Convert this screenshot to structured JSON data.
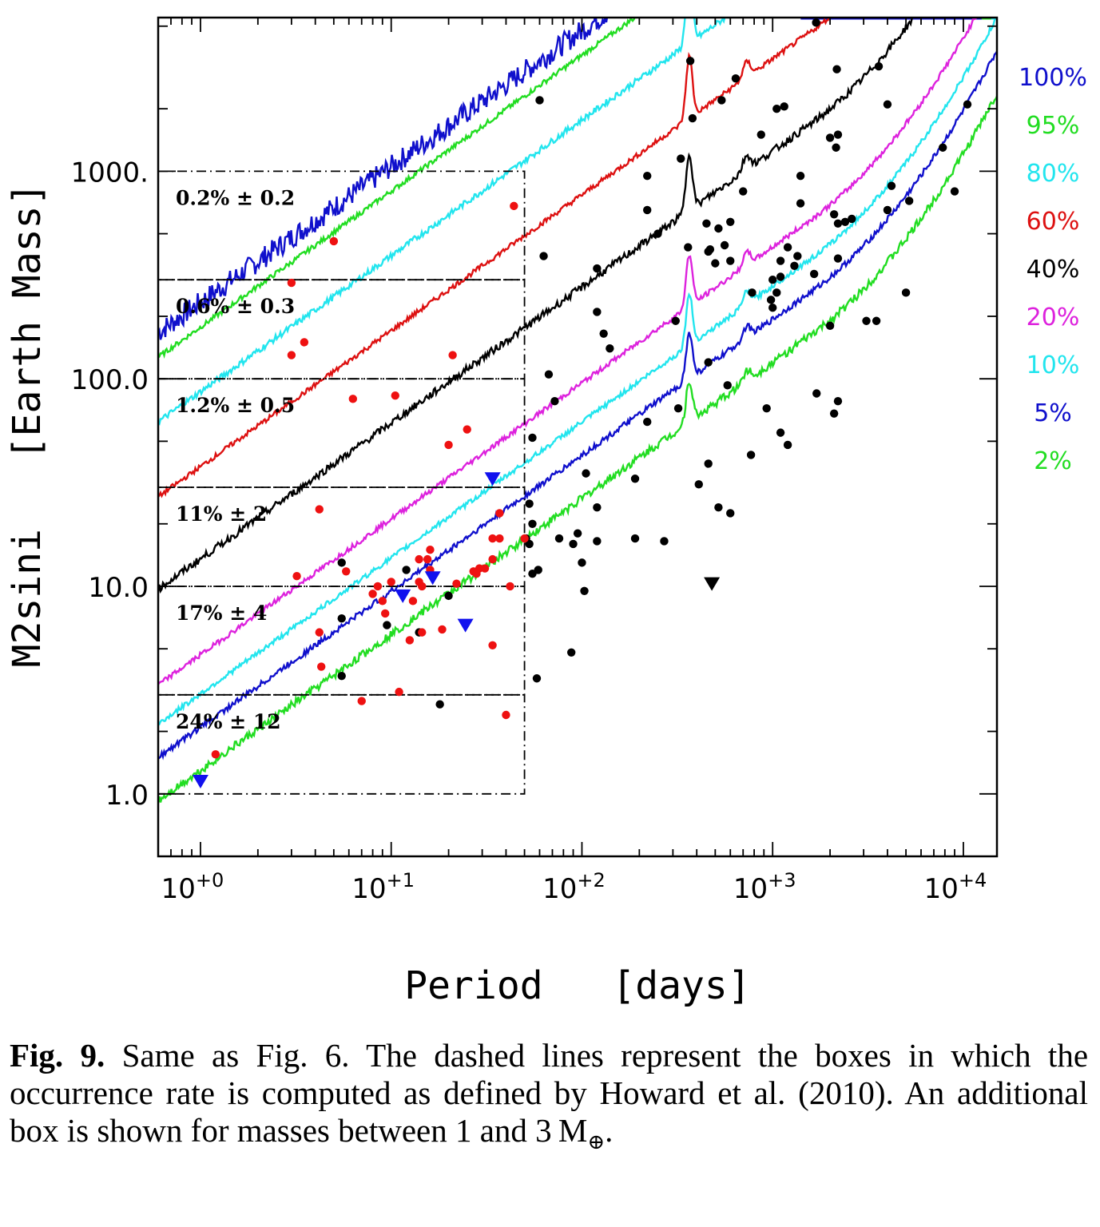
{
  "chart_data": {
    "type": "scatter",
    "title": "",
    "xlabel": "Period   [days]",
    "ylabel": "M2sini   [Earth Mass]",
    "xscale": "log",
    "yscale": "log",
    "xlim": [
      0.6,
      15000
    ],
    "ylim": [
      0.5,
      5500
    ],
    "grid": false,
    "legend_position": "right-outside",
    "x_ticks": [
      {
        "value": 1,
        "base": "10",
        "exp": "+0"
      },
      {
        "value": 10,
        "base": "10",
        "exp": "+1"
      },
      {
        "value": 100,
        "base": "10",
        "exp": "+2"
      },
      {
        "value": 1000,
        "base": "10",
        "exp": "+3"
      },
      {
        "value": 10000,
        "base": "10",
        "exp": "+4"
      }
    ],
    "y_ticks": [
      {
        "value": 1,
        "label": "1.0"
      },
      {
        "value": 10,
        "label": "10.0"
      },
      {
        "value": 100,
        "label": "100.0"
      },
      {
        "value": 1000,
        "label": "1000."
      }
    ],
    "detection_curves": [
      {
        "label": "100%",
        "color": "#1010cc",
        "base": 167,
        "spike": 0,
        "noise": 0.055,
        "step_at": 1400
      },
      {
        "label": "95%",
        "color": "#22dd22",
        "base": 127,
        "spike": 0,
        "noise": 0.012,
        "wall_at": 12500
      },
      {
        "label": "80%",
        "color": "#22e5ee",
        "base": 62,
        "spike": 0.35,
        "noise": 0.015,
        "wall_at": 14000
      },
      {
        "label": "60%",
        "color": "#dd1111",
        "base": 27,
        "spike": 0.3,
        "noise": 0.012,
        "rise": 1
      },
      {
        "label": "40%",
        "color": "#000000",
        "base": 9.7,
        "spike": 0.28,
        "noise": 0.018,
        "rise": 1
      },
      {
        "label": "20%",
        "color": "#dd22dd",
        "base": 3.35,
        "spike": 0.25,
        "noise": 0.012,
        "rise": 1
      },
      {
        "label": "10%",
        "color": "#22e5ee",
        "base": 2.17,
        "spike": 0.25,
        "noise": 0.012,
        "rise": 1
      },
      {
        "label": "5%",
        "color": "#1010cc",
        "base": 1.5,
        "spike": 0.22,
        "noise": 0.014,
        "rise": 1
      },
      {
        "label": "2%",
        "color": "#22dd22",
        "base": 0.93,
        "spike": 0.2,
        "noise": 0.02,
        "rise": 1
      }
    ],
    "occurrence_boxes": [
      {
        "label": "0.2% ± 0.2",
        "mass_min": 300,
        "mass_max": 1000,
        "period_max": 50
      },
      {
        "label": "0.6% ± 0.3",
        "mass_min": 100,
        "mass_max": 300,
        "period_max": 50
      },
      {
        "label": "1.2% ± 0.5",
        "mass_min": 30,
        "mass_max": 100,
        "period_max": 50
      },
      {
        "label": "11% ± 2",
        "mass_min": 10,
        "mass_max": 30,
        "period_max": 50
      },
      {
        "label": "17% ± 4",
        "mass_min": 3,
        "mass_max": 10,
        "period_max": 50
      },
      {
        "label": "24% ± 12",
        "mass_min": 1,
        "mass_max": 3,
        "period_max": 50
      }
    ],
    "series": [
      {
        "color": "#000000",
        "marker": "circle",
        "points": [
          [
            1690,
            5200
          ],
          [
            370,
            3400
          ],
          [
            2170,
            3100
          ],
          [
            3600,
            3200
          ],
          [
            640,
            2800
          ],
          [
            60,
            2200
          ],
          [
            540,
            2200
          ],
          [
            10500,
            2100
          ],
          [
            4000,
            2100
          ],
          [
            1050,
            2000
          ],
          [
            1150,
            2050
          ],
          [
            380,
            1800
          ],
          [
            870,
            1500
          ],
          [
            2000,
            1450
          ],
          [
            2200,
            1500
          ],
          [
            2150,
            1300
          ],
          [
            7800,
            1300
          ],
          [
            330,
            1150
          ],
          [
            220,
            950
          ],
          [
            1400,
            950
          ],
          [
            4200,
            850
          ],
          [
            700,
            800
          ],
          [
            9000,
            800
          ],
          [
            5200,
            720
          ],
          [
            1400,
            700
          ],
          [
            220,
            650
          ],
          [
            4000,
            650
          ],
          [
            2100,
            620
          ],
          [
            2400,
            570
          ],
          [
            2600,
            590
          ],
          [
            2200,
            560
          ],
          [
            250,
            500
          ],
          [
            450,
            560
          ],
          [
            520,
            530
          ],
          [
            600,
            570
          ],
          [
            560,
            440
          ],
          [
            460,
            410
          ],
          [
            470,
            420
          ],
          [
            360,
            430
          ],
          [
            63,
            390
          ],
          [
            1100,
            370
          ],
          [
            1200,
            430
          ],
          [
            1350,
            390
          ],
          [
            1300,
            350
          ],
          [
            2200,
            380
          ],
          [
            500,
            360
          ],
          [
            600,
            370
          ],
          [
            120,
            340
          ],
          [
            1000,
            300
          ],
          [
            1100,
            310
          ],
          [
            1650,
            320
          ],
          [
            1050,
            260
          ],
          [
            780,
            260
          ],
          [
            980,
            240
          ],
          [
            1000,
            220
          ],
          [
            120,
            210
          ],
          [
            5000,
            260
          ],
          [
            3100,
            190
          ],
          [
            3500,
            190
          ],
          [
            310,
            190
          ],
          [
            2000,
            180
          ],
          [
            130,
            165
          ],
          [
            140,
            140
          ],
          [
            460,
            120
          ],
          [
            67,
            105
          ],
          [
            580,
            93
          ],
          [
            1700,
            85
          ],
          [
            2200,
            78
          ],
          [
            72,
            78
          ],
          [
            320,
            72
          ],
          [
            930,
            72
          ],
          [
            2100,
            68
          ],
          [
            220,
            62
          ],
          [
            1100,
            55
          ],
          [
            55,
            52
          ],
          [
            1200,
            48
          ],
          [
            770,
            43
          ],
          [
            460,
            39
          ],
          [
            105,
            35
          ],
          [
            190,
            33
          ],
          [
            410,
            31
          ],
          [
            53,
            25
          ],
          [
            120,
            24
          ],
          [
            520,
            24
          ],
          [
            600,
            22.5
          ],
          [
            55,
            20
          ],
          [
            76,
            17
          ],
          [
            190,
            17
          ],
          [
            51,
            17
          ],
          [
            95,
            18
          ],
          [
            270,
            16.5
          ],
          [
            120,
            16.5
          ],
          [
            90,
            16
          ],
          [
            53,
            16
          ],
          [
            55,
            11.5
          ],
          [
            59,
            12
          ],
          [
            100,
            13
          ],
          [
            5.5,
            13
          ],
          [
            12,
            12
          ],
          [
            103,
            9.5
          ],
          [
            20,
            9
          ],
          [
            9.5,
            6.5
          ],
          [
            5.5,
            7
          ],
          [
            14,
            6
          ],
          [
            5.5,
            3.7
          ],
          [
            18,
            2.7
          ],
          [
            58,
            3.6
          ],
          [
            88,
            4.8
          ]
        ]
      },
      {
        "color": "#ee1111",
        "marker": "circle",
        "points": [
          [
            44,
            680
          ],
          [
            5,
            460
          ],
          [
            3,
            290
          ],
          [
            3.5,
            150
          ],
          [
            3,
            130
          ],
          [
            21,
            130
          ],
          [
            6.3,
            80
          ],
          [
            10.5,
            83
          ],
          [
            25,
            57
          ],
          [
            20,
            48
          ],
          [
            4.2,
            23.5
          ],
          [
            37,
            22.5
          ],
          [
            34,
            17
          ],
          [
            37,
            17
          ],
          [
            50,
            17
          ],
          [
            16,
            15
          ],
          [
            15.5,
            13.5
          ],
          [
            14,
            13.5
          ],
          [
            16,
            12
          ],
          [
            34,
            13.5
          ],
          [
            5.8,
            11.8
          ],
          [
            3.2,
            11.2
          ],
          [
            29,
            12.2
          ],
          [
            27,
            11.8
          ],
          [
            31,
            12.2
          ],
          [
            28,
            11.5
          ],
          [
            14,
            10.5
          ],
          [
            14.5,
            10
          ],
          [
            22,
            10.3
          ],
          [
            10,
            10.5
          ],
          [
            8.5,
            10
          ],
          [
            42,
            10
          ],
          [
            8,
            9.2
          ],
          [
            9,
            8.5
          ],
          [
            13,
            8.5
          ],
          [
            9.3,
            7.4
          ],
          [
            4.2,
            6
          ],
          [
            14.5,
            6
          ],
          [
            18.5,
            6.2
          ],
          [
            12.5,
            5.5
          ],
          [
            34,
            5.2
          ],
          [
            4.3,
            4.1
          ],
          [
            11,
            3.1
          ],
          [
            7,
            2.8
          ],
          [
            40,
            2.4
          ],
          [
            1.2,
            1.55
          ]
        ]
      },
      {
        "color": "#1111ee",
        "marker": "triangle-down",
        "points": [
          [
            34,
            33
          ],
          [
            16.5,
            11
          ],
          [
            11.5,
            9
          ],
          [
            24.5,
            6.5
          ],
          [
            1,
            1.15
          ]
        ]
      },
      {
        "color": "#000000",
        "marker": "triangle-down",
        "points": [
          [
            480,
            10.3
          ]
        ]
      }
    ]
  },
  "caption": {
    "label": "Fig. 9.",
    "text": "Same as Fig. 6. The dashed lines represent the boxes in which the occurrence rate is computed as defined by Howard et al. (2010). An additional box is shown for masses between 1 and 3",
    "symbol": "M",
    "subscript": "⊕",
    "end": "."
  }
}
